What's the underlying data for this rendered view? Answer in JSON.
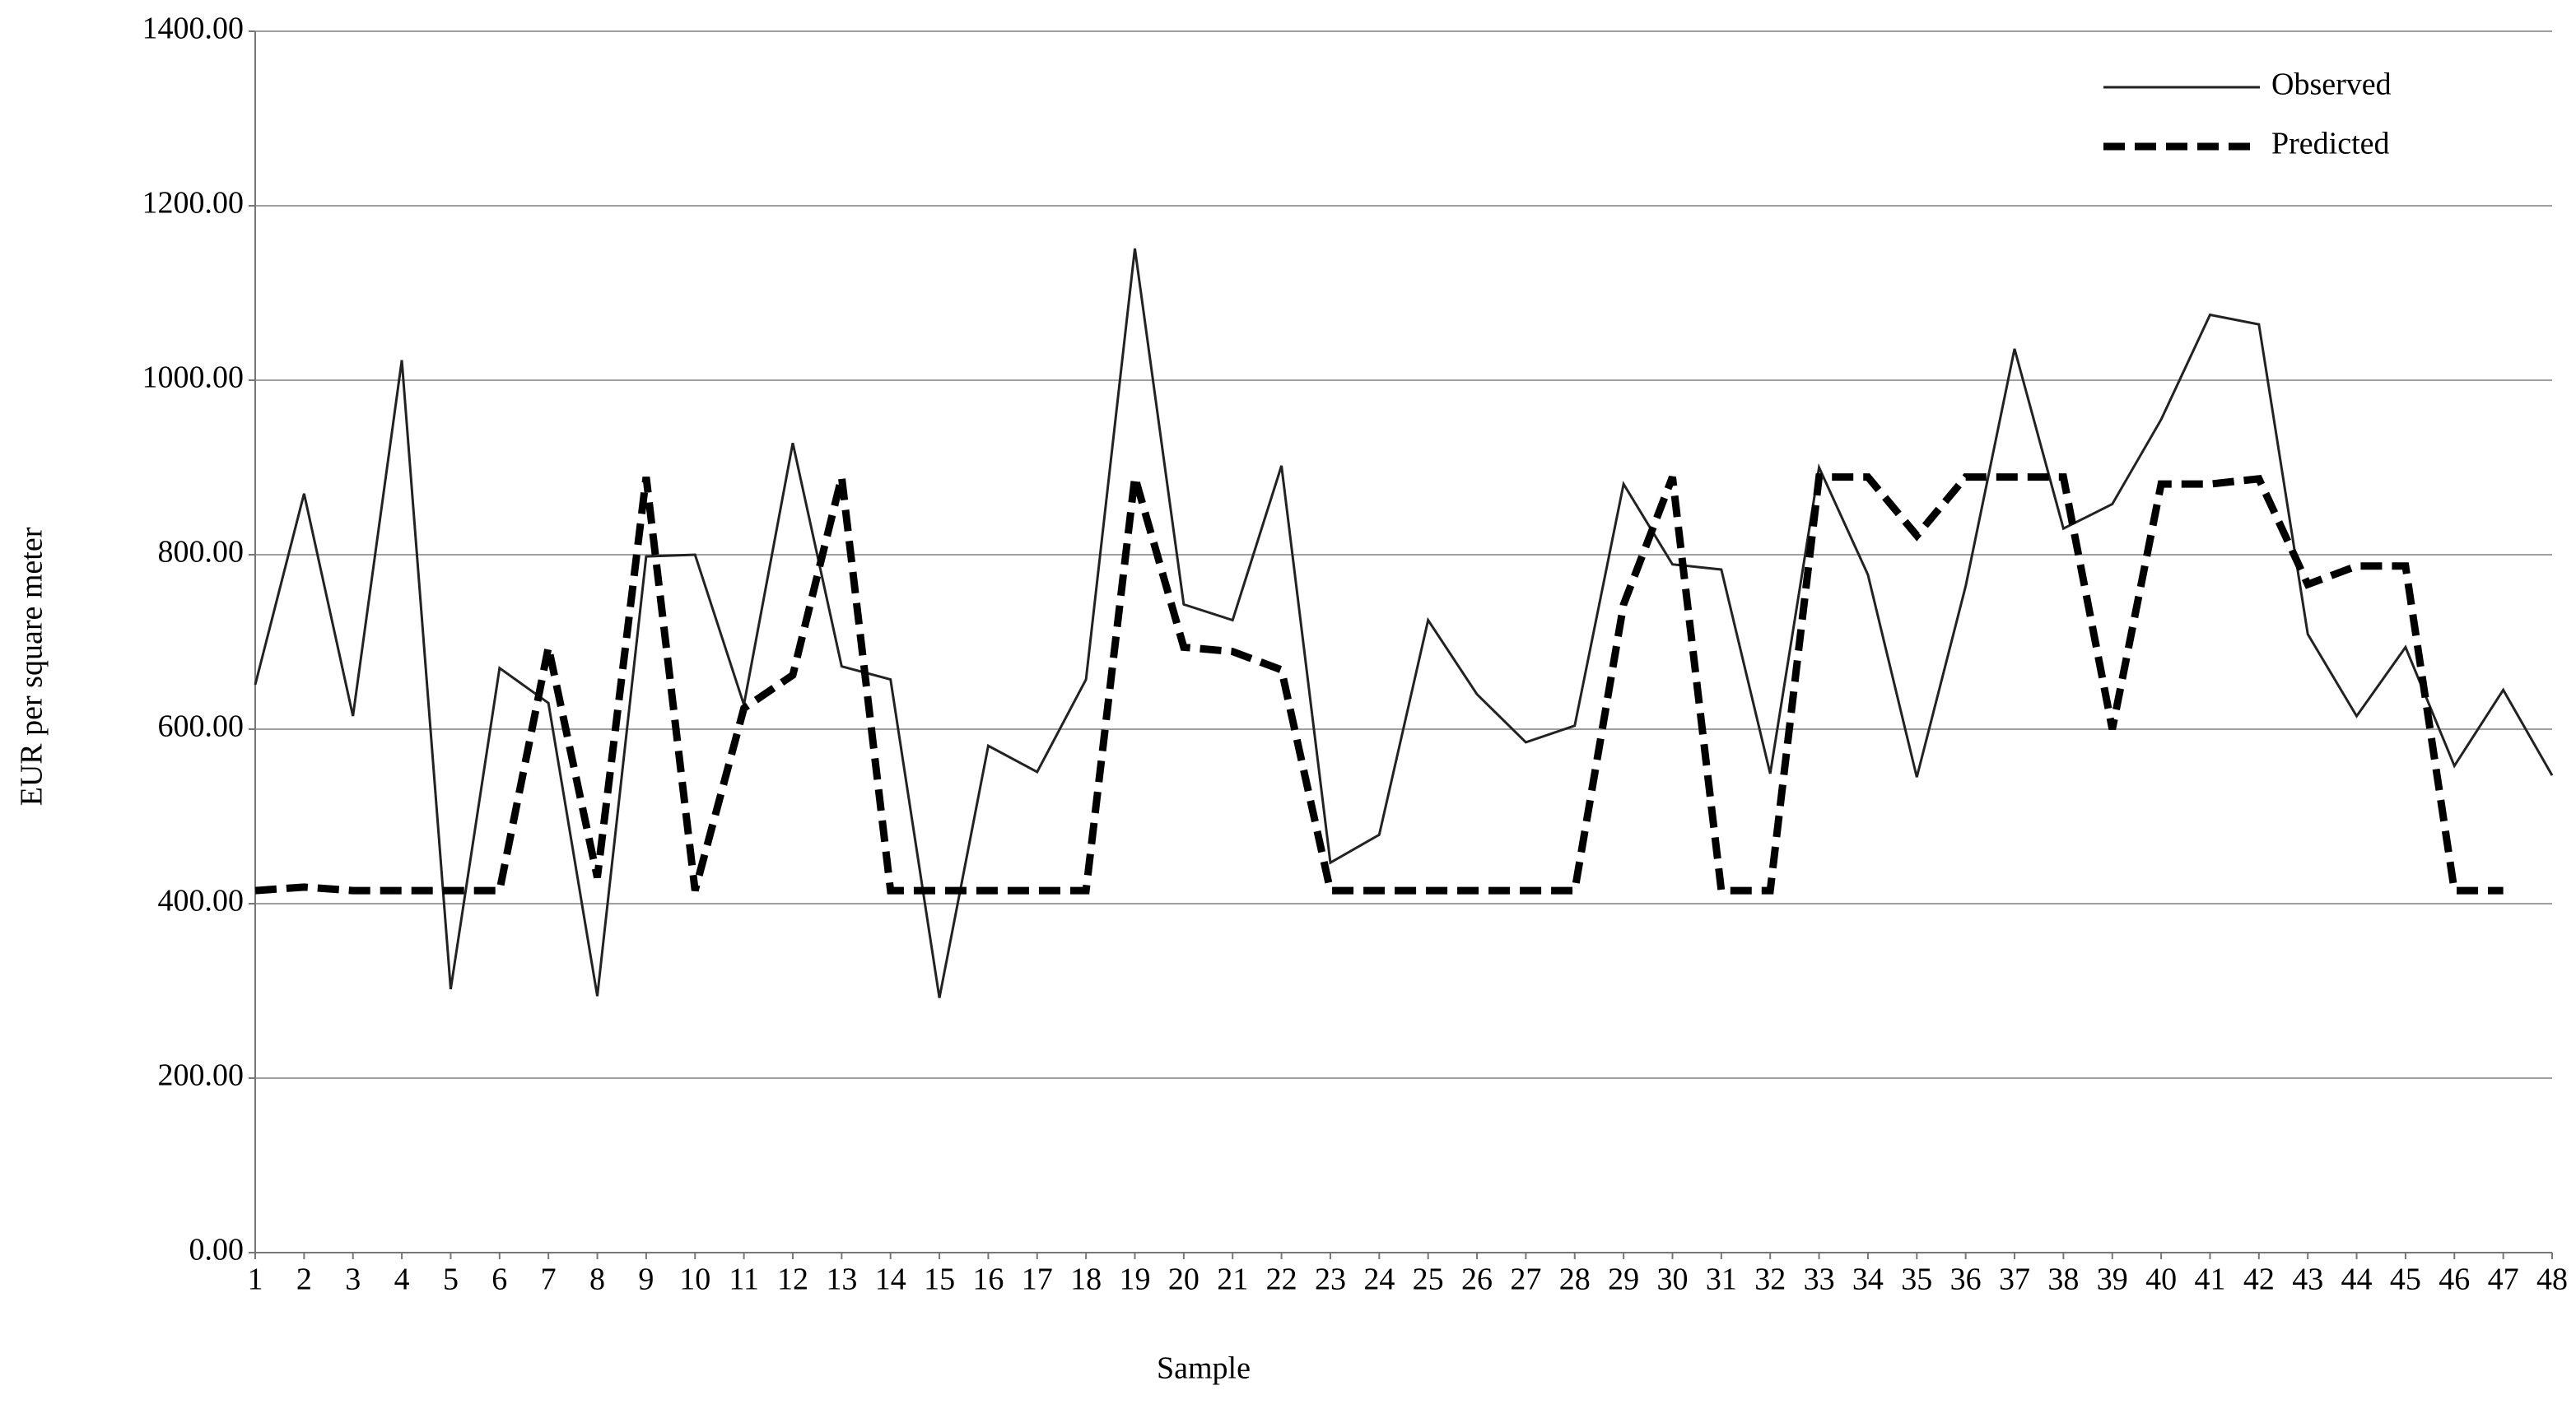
{
  "chart_data": {
    "type": "line",
    "x_label": "Sample",
    "y_label": "EUR per square meter",
    "categories": [
      "1",
      "2",
      "3",
      "4",
      "5",
      "6",
      "7",
      "8",
      "9",
      "10",
      "11",
      "12",
      "13",
      "14",
      "15",
      "16",
      "17",
      "18",
      "19",
      "20",
      "21",
      "22",
      "23",
      "24",
      "25",
      "26",
      "27",
      "28",
      "29",
      "30",
      "31",
      "32",
      "33",
      "34",
      "35",
      "36",
      "37",
      "38",
      "39",
      "40",
      "41",
      "42",
      "43",
      "44",
      "45",
      "46",
      "47",
      "48"
    ],
    "series": [
      {
        "name": "Observed",
        "color": "#222222",
        "line_style": "solid",
        "values": [
          651,
          870,
          615,
          1023,
          302,
          670,
          630,
          294,
          798,
          800,
          628,
          928,
          672,
          657,
          292,
          581,
          551,
          657,
          1151,
          743,
          725,
          902,
          447,
          479,
          725,
          640,
          585,
          604,
          881,
          789,
          783,
          549,
          900,
          777,
          545,
          764,
          1036,
          830,
          858,
          955,
          1075,
          1064,
          709,
          615,
          694,
          558,
          645,
          547
        ]
      },
      {
        "name": "Predicted",
        "color": "#000000",
        "line_style": "dashed",
        "values": [
          415,
          419,
          415,
          415,
          415,
          415,
          694,
          430,
          889,
          415,
          624,
          662,
          889,
          415,
          415,
          415,
          415,
          415,
          889,
          694,
          689,
          668,
          415,
          415,
          415,
          415,
          415,
          415,
          743,
          889,
          415,
          415,
          889,
          889,
          822,
          889,
          889,
          889,
          600,
          881,
          881,
          887,
          766,
          787,
          787,
          415,
          415,
          null
        ]
      }
    ],
    "ylim": [
      0,
      1400
    ],
    "yticks": [
      {
        "value": 0,
        "label": "0.00"
      },
      {
        "value": 200,
        "label": "200.00"
      },
      {
        "value": 400,
        "label": "400.00"
      },
      {
        "value": 600,
        "label": "600.00"
      },
      {
        "value": 800,
        "label": "800.00"
      },
      {
        "value": 1000,
        "label": "1000.00"
      },
      {
        "value": 1200,
        "label": "1200.00"
      },
      {
        "value": 1400,
        "label": "1400.00"
      }
    ],
    "grid": true,
    "legend": "upper right"
  }
}
